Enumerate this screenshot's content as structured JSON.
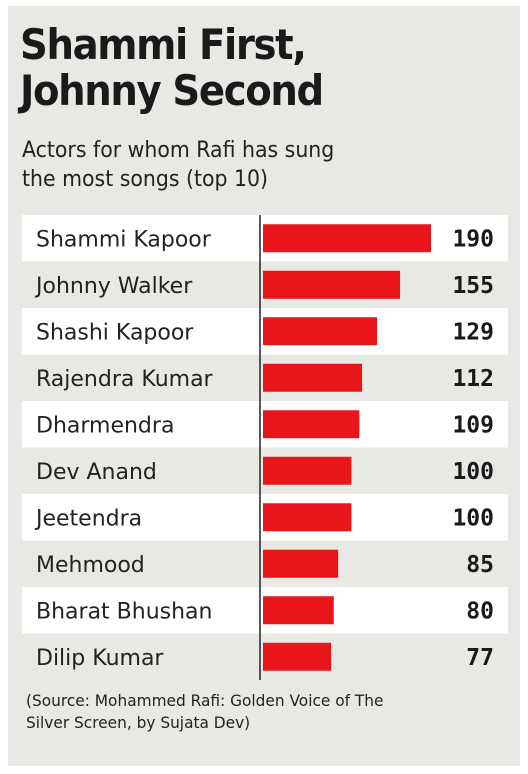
{
  "title_lines": [
    "Shammi First,",
    "Johnny Second"
  ],
  "subtitle_lines": [
    "Actors for whom Rafi has sung",
    "the most songs (top 10)"
  ],
  "source_lines": [
    "(Source: Mohammed Rafi: Golden Voice of The",
    "Silver Screen, by Sujata Dev)"
  ],
  "chart_data": {
    "type": "bar",
    "orientation": "horizontal",
    "title": "Shammi First, Johnny Second",
    "subtitle": "Actors for whom Rafi has sung the most songs (top 10)",
    "categories": [
      "Shammi Kapoor",
      "Johnny Walker",
      "Shashi Kapoor",
      "Rajendra Kumar",
      "Dharmendra",
      "Dev Anand",
      "Jeetendra",
      "Mehmood",
      "Bharat Bhushan",
      "Dilip Kumar"
    ],
    "values": [
      190,
      155,
      129,
      112,
      109,
      100,
      100,
      85,
      80,
      77
    ],
    "xlim": [
      0,
      190
    ],
    "grid": false,
    "data_labels": true,
    "alternating_row_shading": true,
    "colors": {
      "bar": "#e8161b",
      "row_shade": "#ffffff",
      "row_plain": "#e8e8e5",
      "axis": "#222222"
    }
  }
}
